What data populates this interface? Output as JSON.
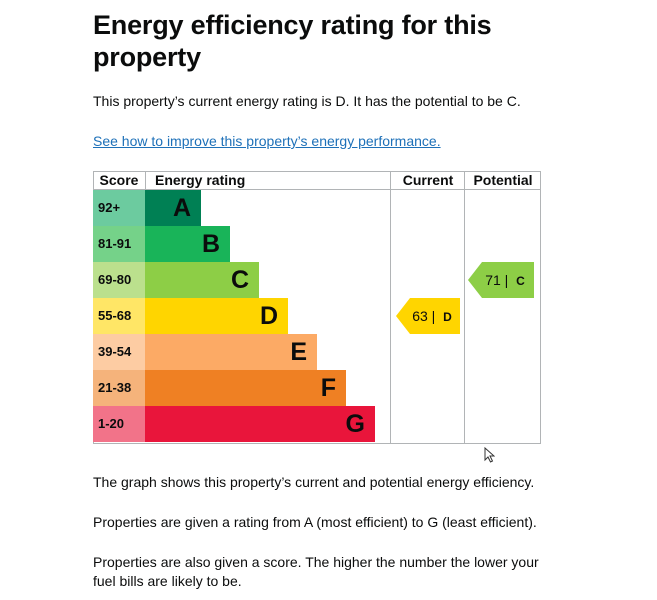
{
  "heading": "Energy efficiency rating for this property",
  "summary": "This property’s current energy rating is D. It has the potential to be C.",
  "link_text": "See how to improve this property’s energy performance.",
  "table": {
    "headers": {
      "score": "Score",
      "rating": "Energy rating",
      "current": "Current",
      "potential": "Potential"
    },
    "bands": [
      {
        "score": "92+",
        "letter": "A",
        "color": "#008054",
        "score_bg": "#6ccb9f"
      },
      {
        "score": "81-91",
        "letter": "B",
        "color": "#19b459",
        "score_bg": "#75d289"
      },
      {
        "score": "69-80",
        "letter": "C",
        "color": "#8dce46",
        "score_bg": "#bbe08d"
      },
      {
        "score": "55-68",
        "letter": "D",
        "color": "#ffd500",
        "score_bg": "#ffe666"
      },
      {
        "score": "39-54",
        "letter": "E",
        "color": "#fcaa65",
        "score_bg": "#fdcca3"
      },
      {
        "score": "21-38",
        "letter": "F",
        "color": "#ef8023",
        "score_bg": "#f5b37b"
      },
      {
        "score": "1-20",
        "letter": "G",
        "color": "#e9153b",
        "score_bg": "#f27389"
      }
    ],
    "current": {
      "score": "63",
      "letter": "D",
      "color": "#ffd500"
    },
    "potential": {
      "score": "71",
      "letter": "C",
      "color": "#8dce46"
    }
  },
  "paragraphs": [
    "The graph shows this property’s current and potential energy efficiency.",
    "Properties are given a rating from A (most efficient) to G (least efficient).",
    "Properties are also given a score. The higher the number the lower your fuel bills are likely to be."
  ]
}
